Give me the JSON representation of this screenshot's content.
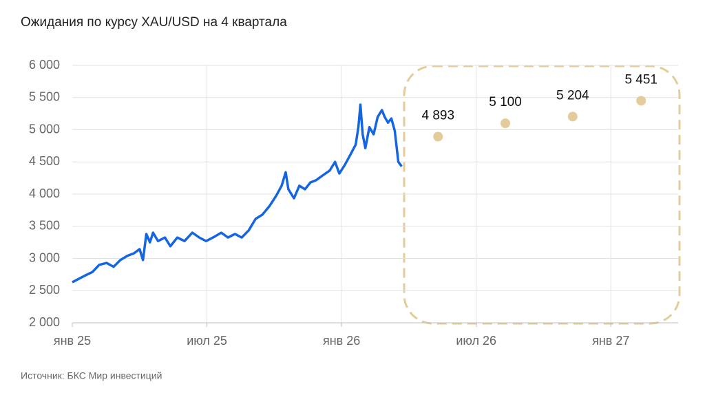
{
  "chart_data": {
    "type": "line",
    "title": "Ожидания по курсу XAU/USD на 4 квартала",
    "source": "Источник: БКС Мир инвестиций",
    "xlim": [
      0,
      27
    ],
    "xticks": [
      {
        "value": 0,
        "label": "янв 25"
      },
      {
        "value": 6,
        "label": "июл 25"
      },
      {
        "value": 12,
        "label": "янв 26"
      },
      {
        "value": 18,
        "label": "июл 26"
      },
      {
        "value": 24,
        "label": "янв 27"
      }
    ],
    "ylim": [
      2000,
      6000
    ],
    "yticks": [
      {
        "value": 2000,
        "label": "2 000"
      },
      {
        "value": 2500,
        "label": "2 500"
      },
      {
        "value": 3000,
        "label": "3 000"
      },
      {
        "value": 3500,
        "label": "3 500"
      },
      {
        "value": 4000,
        "label": "4 000"
      },
      {
        "value": 4500,
        "label": "4 500"
      },
      {
        "value": 5000,
        "label": "5 000"
      },
      {
        "value": 5500,
        "label": "5 500"
      },
      {
        "value": 6000,
        "label": "6 000"
      }
    ],
    "grid": true,
    "series": [
      {
        "type": "line",
        "color": "#1565e0",
        "x": [
          0,
          0.3,
          0.6,
          0.9,
          1.2,
          1.53,
          1.84,
          2.14,
          2.45,
          2.75,
          3.0,
          3.15,
          3.3,
          3.46,
          3.6,
          3.82,
          4.13,
          4.37,
          4.68,
          5.0,
          5.35,
          5.66,
          5.96,
          6.27,
          6.64,
          6.94,
          7.25,
          7.55,
          7.86,
          8.17,
          8.47,
          8.78,
          9.08,
          9.33,
          9.51,
          9.63,
          9.88,
          10.12,
          10.37,
          10.61,
          10.86,
          11.16,
          11.47,
          11.71,
          11.9,
          12.14,
          12.39,
          12.63,
          12.75,
          12.84,
          12.94,
          13.06,
          13.24,
          13.43,
          13.61,
          13.8,
          13.92,
          14.07,
          14.22,
          14.37,
          14.53,
          14.68
        ],
        "values": [
          2630,
          2685,
          2740,
          2790,
          2900,
          2930,
          2870,
          2975,
          3040,
          3080,
          3145,
          2975,
          3380,
          3250,
          3400,
          3270,
          3325,
          3190,
          3325,
          3270,
          3400,
          3325,
          3270,
          3325,
          3400,
          3325,
          3380,
          3325,
          3435,
          3615,
          3680,
          3810,
          3970,
          4130,
          4340,
          4075,
          3935,
          4130,
          4075,
          4180,
          4215,
          4290,
          4365,
          4500,
          4320,
          4450,
          4610,
          4770,
          5040,
          5390,
          4930,
          4715,
          5040,
          4930,
          5200,
          5305,
          5200,
          5110,
          5175,
          4985,
          4500,
          4430
        ]
      },
      {
        "type": "scatter",
        "color": "#e3cc9a",
        "x": [
          16.3,
          19.3,
          22.3,
          25.35
        ],
        "values": [
          4893,
          5100,
          5204,
          5451
        ],
        "value_labels": [
          "4 893",
          "5 100",
          "5 204",
          "5 451"
        ]
      }
    ]
  }
}
